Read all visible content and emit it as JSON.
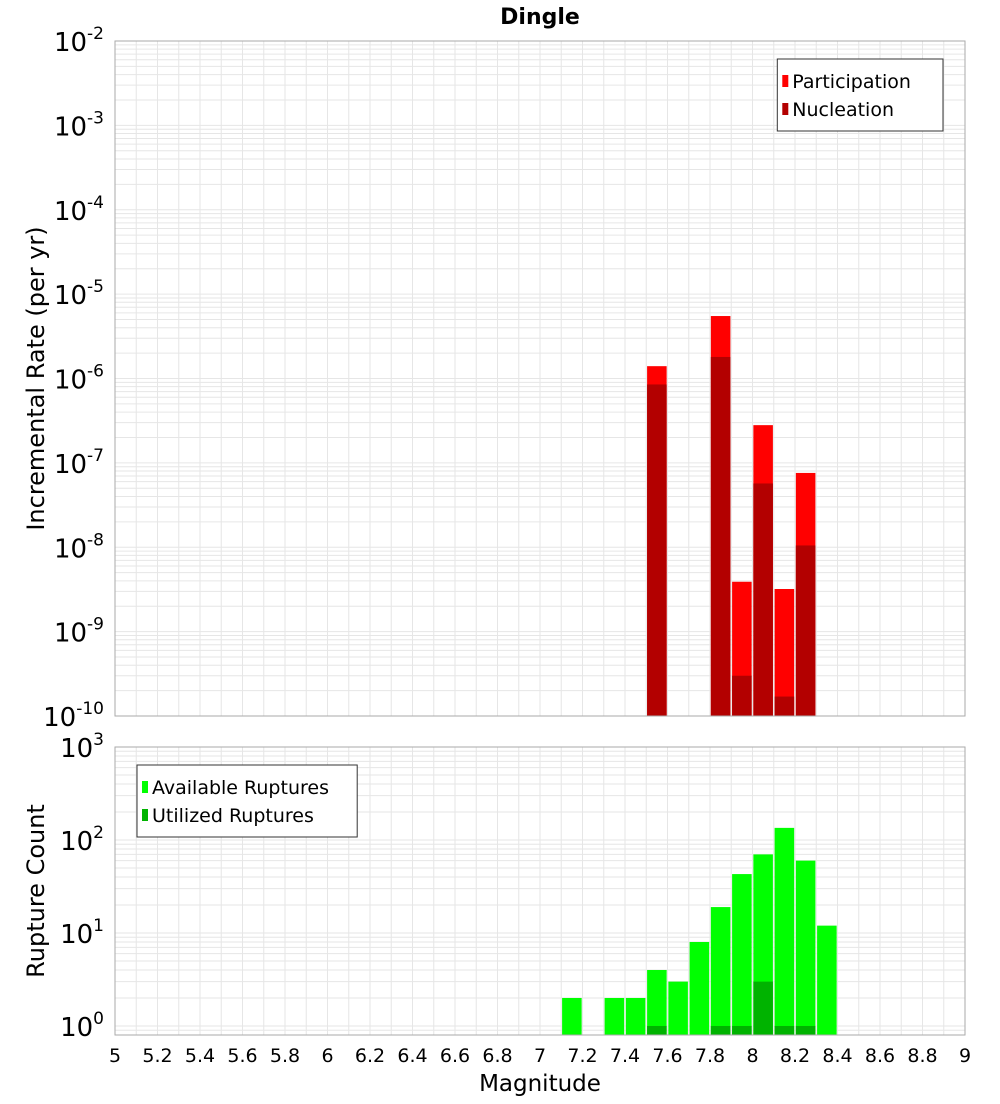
{
  "chart_data": [
    {
      "type": "bar",
      "title": "Dingle",
      "ylabel": "Incremental Rate (per yr)",
      "yscale": "log",
      "ylim": [
        1e-10,
        0.01
      ],
      "xlim": [
        5,
        9
      ],
      "grid": true,
      "legend_placement": "top-right",
      "y_tick_exponents": [
        "-10",
        "-9",
        "-8",
        "-7",
        "-6",
        "-5",
        "-4",
        "-3",
        "-2"
      ],
      "series": [
        {
          "name": "Participation",
          "color": "#ff0000",
          "x": [
            7.55,
            7.85,
            7.95,
            8.05,
            8.15,
            8.25
          ],
          "values": [
            1.4e-06,
            5.5e-06,
            3.9e-09,
            2.8e-07,
            3.2e-09,
            7.6e-08
          ]
        },
        {
          "name": "Nucleation",
          "color": "#b30000",
          "x": [
            7.55,
            7.85,
            7.95,
            8.05,
            8.15,
            8.25
          ],
          "values": [
            8.5e-07,
            1.8e-06,
            3e-10,
            5.7e-08,
            1.7e-10,
            1.05e-08
          ]
        }
      ]
    },
    {
      "type": "bar",
      "title": "",
      "xlabel": "Magnitude",
      "ylabel": "Rupture Count",
      "yscale": "log",
      "ylim": [
        0.8,
        1000
      ],
      "xlim": [
        5,
        9
      ],
      "grid": true,
      "legend_placement": "top-left",
      "y_tick_exponents": [
        "0",
        "1",
        "2",
        "3"
      ],
      "x_ticks": [
        "5",
        "5.2",
        "5.4",
        "5.6",
        "5.8",
        "6",
        "6.2",
        "6.4",
        "6.6",
        "6.8",
        "7",
        "7.2",
        "7.4",
        "7.6",
        "7.8",
        "8",
        "8.2",
        "8.4",
        "8.6",
        "8.8",
        "9"
      ],
      "series": [
        {
          "name": "Available Ruptures",
          "color": "#00ff00",
          "x": [
            7.15,
            7.35,
            7.45,
            7.55,
            7.65,
            7.75,
            7.85,
            7.95,
            8.05,
            8.15,
            8.25,
            8.35
          ],
          "values": [
            2,
            2,
            2,
            4,
            3,
            8,
            19,
            43,
            70,
            135,
            60,
            12
          ]
        },
        {
          "name": "Utilized Ruptures",
          "color": "#00b300",
          "x": [
            7.55,
            7.85,
            7.95,
            8.05,
            8.15,
            8.25
          ],
          "values": [
            1,
            1,
            1,
            3,
            1,
            1
          ]
        }
      ]
    }
  ]
}
